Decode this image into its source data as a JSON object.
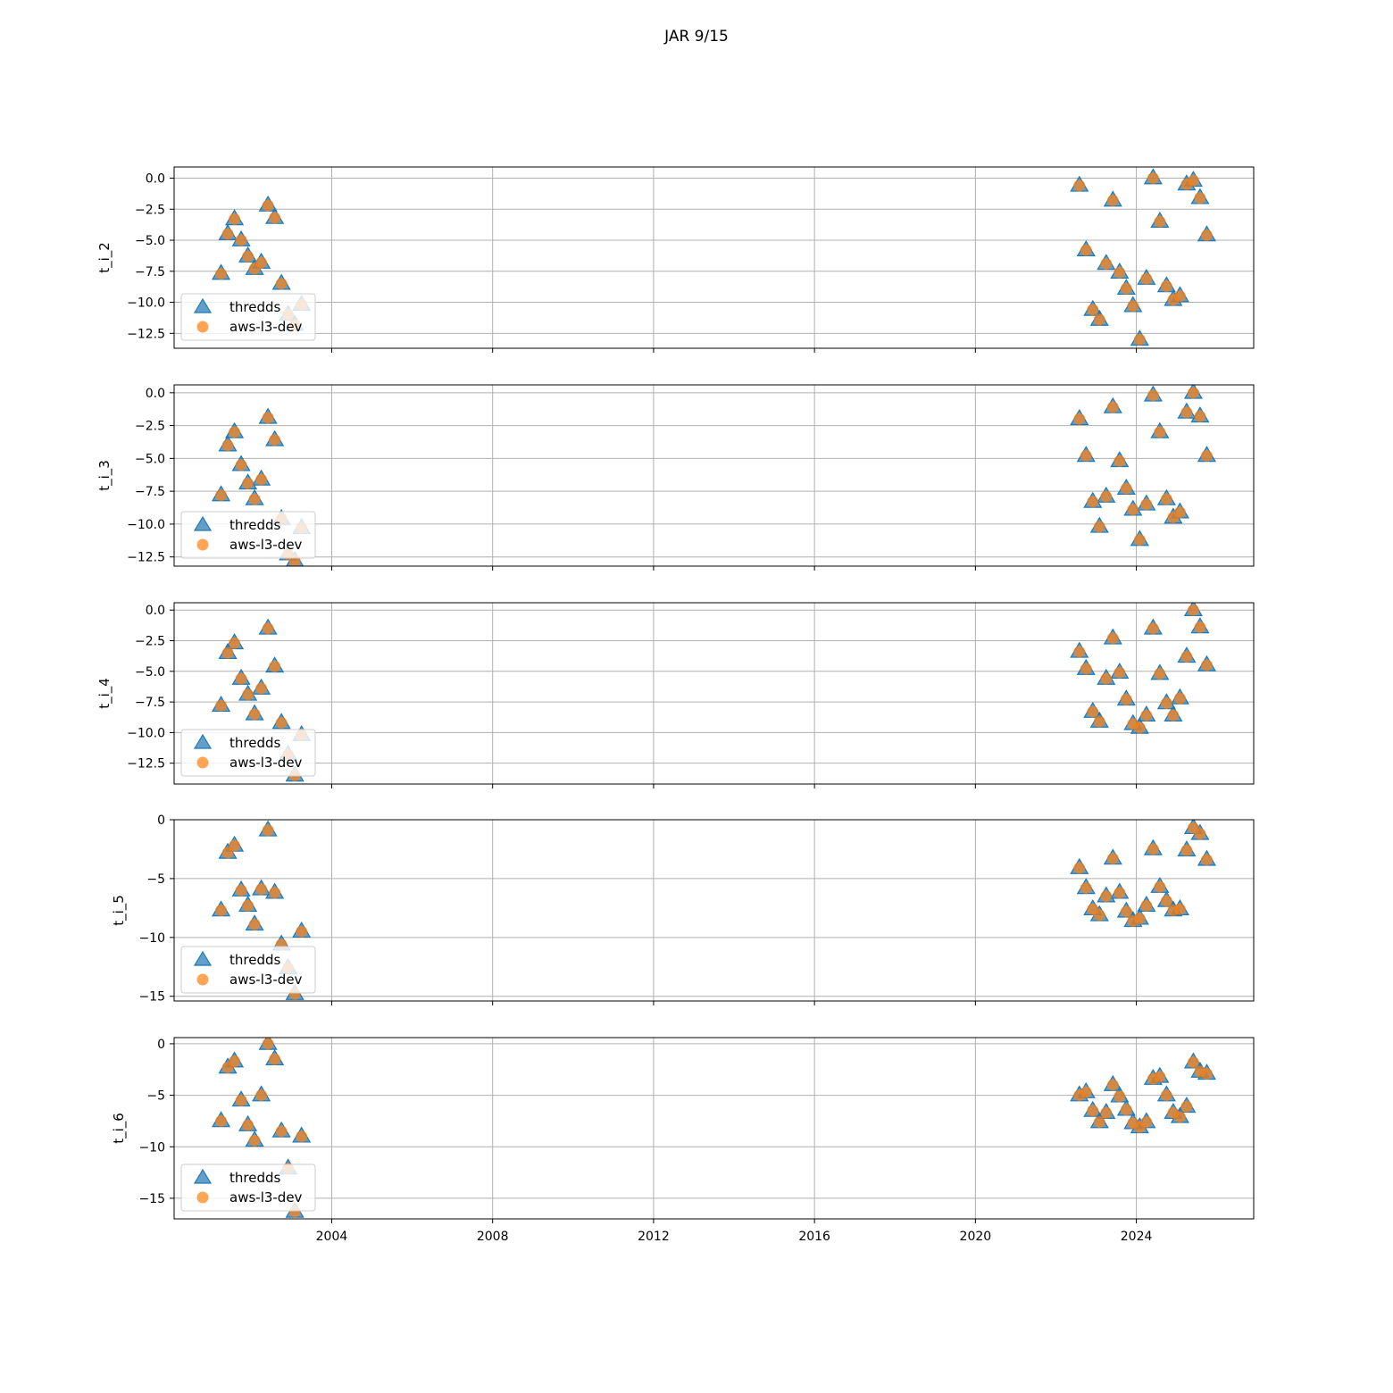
{
  "title": "JAR 9/15",
  "chart_data": {
    "type": "scatter",
    "title": "JAR 9/15",
    "x_axis": {
      "kind": "date",
      "range": [
        "2000-02-01",
        "2026-12-01"
      ],
      "ticks": [
        "2004-01-01",
        "2008-01-01",
        "2012-01-01",
        "2016-01-01",
        "2020-01-01",
        "2024-01-01"
      ],
      "tick_labels": [
        "2004",
        "2008",
        "2012",
        "2016",
        "2020",
        "2024"
      ]
    },
    "grid": true,
    "legend_placement": "lower-left",
    "colors": {
      "thredds": "#1f77b4",
      "aws-l3-dev": "#ff7f0e"
    },
    "series_names": [
      "thredds",
      "aws-l3-dev"
    ],
    "panels": [
      {
        "ylabel": "t_i_2",
        "ylim": [
          -13.7,
          0.9
        ],
        "yticks": [
          0,
          -2.5,
          -5,
          -7.5,
          -10,
          -12.5
        ],
        "ytick_labels": [
          "0.0",
          "−2.5",
          "−5.0",
          "−7.5",
          "−10.0",
          "−12.5"
        ],
        "x": [
          "2001-04",
          "2001-06",
          "2001-08",
          "2001-10",
          "2001-12",
          "2002-02",
          "2002-04",
          "2002-06",
          "2002-08",
          "2002-10",
          "2002-12",
          "2003-02",
          "2003-04",
          "2022-08",
          "2022-10",
          "2022-12",
          "2023-02",
          "2023-04",
          "2023-06",
          "2023-08",
          "2023-10",
          "2023-12",
          "2024-02",
          "2024-04",
          "2024-06",
          "2024-08",
          "2024-10",
          "2024-12",
          "2025-02",
          "2025-04",
          "2025-06",
          "2025-08",
          "2025-10"
        ],
        "y": [
          -7.7,
          -4.5,
          -3.3,
          -5.0,
          -6.3,
          -7.3,
          -6.8,
          -2.2,
          -3.2,
          -8.5,
          -11.0,
          -11.8,
          -10.2,
          -0.6,
          -5.8,
          -10.6,
          -11.4,
          -6.9,
          -1.8,
          -7.6,
          -8.9,
          -10.3,
          -13.0,
          -8.1,
          0.0,
          -3.5,
          -8.7,
          -9.8,
          -9.5,
          -0.5,
          -0.2,
          -1.6,
          -4.6
        ]
      },
      {
        "ylabel": "t_i_3",
        "ylim": [
          -13.2,
          0.6
        ],
        "yticks": [
          0,
          -2.5,
          -5,
          -7.5,
          -10,
          -12.5
        ],
        "ytick_labels": [
          "0.0",
          "−2.5",
          "−5.0",
          "−7.5",
          "−10.0",
          "−12.5"
        ],
        "x": [
          "2001-04",
          "2001-06",
          "2001-08",
          "2001-10",
          "2001-12",
          "2002-02",
          "2002-04",
          "2002-06",
          "2002-08",
          "2002-10",
          "2002-12",
          "2003-02",
          "2003-04",
          "2022-08",
          "2022-10",
          "2022-12",
          "2023-02",
          "2023-04",
          "2023-06",
          "2023-08",
          "2023-10",
          "2023-12",
          "2024-02",
          "2024-04",
          "2024-06",
          "2024-08",
          "2024-10",
          "2024-12",
          "2025-02",
          "2025-04",
          "2025-06",
          "2025-08",
          "2025-10"
        ],
        "y": [
          -7.8,
          -4.0,
          -3.0,
          -5.5,
          -6.9,
          -8.1,
          -6.6,
          -1.9,
          -3.6,
          -9.6,
          -12.3,
          -12.8,
          -10.3,
          -2.0,
          -4.8,
          -8.3,
          -10.2,
          -7.9,
          -1.1,
          -5.2,
          -7.3,
          -8.9,
          -11.2,
          -8.5,
          -0.2,
          -3.0,
          -8.1,
          -9.5,
          -9.1,
          -1.5,
          0.0,
          -1.8,
          -4.8
        ]
      },
      {
        "ylabel": "t_i_4",
        "ylim": [
          -14.2,
          0.6
        ],
        "yticks": [
          0,
          -2.5,
          -5,
          -7.5,
          -10,
          -12.5
        ],
        "ytick_labels": [
          "0.0",
          "−2.5",
          "−5.0",
          "−7.5",
          "−10.0",
          "−12.5"
        ],
        "x": [
          "2001-04",
          "2001-06",
          "2001-08",
          "2001-10",
          "2001-12",
          "2002-02",
          "2002-04",
          "2002-06",
          "2002-08",
          "2002-10",
          "2002-12",
          "2003-02",
          "2003-04",
          "2022-08",
          "2022-10",
          "2022-12",
          "2023-02",
          "2023-04",
          "2023-06",
          "2023-08",
          "2023-10",
          "2023-12",
          "2024-02",
          "2024-04",
          "2024-06",
          "2024-08",
          "2024-10",
          "2024-12",
          "2025-02",
          "2025-04",
          "2025-06",
          "2025-08",
          "2025-10"
        ],
        "y": [
          -7.8,
          -3.5,
          -2.7,
          -5.6,
          -6.9,
          -8.5,
          -6.4,
          -1.5,
          -4.6,
          -9.2,
          -11.8,
          -13.5,
          -10.2,
          -3.4,
          -4.8,
          -8.3,
          -9.1,
          -5.6,
          -2.3,
          -5.1,
          -7.3,
          -9.3,
          -9.6,
          -8.6,
          -1.5,
          -5.2,
          -7.6,
          -8.6,
          -7.2,
          -3.8,
          0.0,
          -1.4,
          -4.5
        ]
      },
      {
        "ylabel": "t_i_5",
        "ylim": [
          -15.4,
          0.0
        ],
        "yticks": [
          0,
          -5,
          -10,
          -15
        ],
        "ytick_labels": [
          "0",
          "−5",
          "−10",
          "−15"
        ],
        "x": [
          "2001-04",
          "2001-06",
          "2001-08",
          "2001-10",
          "2001-12",
          "2002-02",
          "2002-04",
          "2002-06",
          "2002-08",
          "2002-10",
          "2002-12",
          "2003-02",
          "2003-04",
          "2022-08",
          "2022-10",
          "2022-12",
          "2023-02",
          "2023-04",
          "2023-06",
          "2023-08",
          "2023-10",
          "2023-12",
          "2024-02",
          "2024-04",
          "2024-06",
          "2024-08",
          "2024-10",
          "2024-12",
          "2025-02",
          "2025-04",
          "2025-06",
          "2025-08",
          "2025-10"
        ],
        "y": [
          -7.7,
          -2.8,
          -2.2,
          -6.0,
          -7.3,
          -8.9,
          -5.9,
          -0.9,
          -6.2,
          -10.6,
          -12.6,
          -14.8,
          -9.5,
          -4.1,
          -5.8,
          -7.6,
          -8.1,
          -6.5,
          -3.3,
          -6.2,
          -7.8,
          -8.6,
          -8.4,
          -7.3,
          -2.5,
          -5.7,
          -6.9,
          -7.7,
          -7.6,
          -2.6,
          -0.7,
          -1.2,
          -3.4
        ]
      },
      {
        "ylabel": "t_i_6",
        "ylim": [
          -17.0,
          0.6
        ],
        "yticks": [
          0,
          -5,
          -10,
          -15
        ],
        "ytick_labels": [
          "0",
          "−5",
          "−10",
          "−15"
        ],
        "x": [
          "2001-04",
          "2001-06",
          "2001-08",
          "2001-10",
          "2001-12",
          "2002-02",
          "2002-04",
          "2002-06",
          "2002-08",
          "2002-10",
          "2002-12",
          "2003-02",
          "2003-04",
          "2022-08",
          "2022-10",
          "2022-12",
          "2023-02",
          "2023-04",
          "2023-06",
          "2023-08",
          "2023-10",
          "2023-12",
          "2024-02",
          "2024-04",
          "2024-06",
          "2024-08",
          "2024-10",
          "2024-12",
          "2025-02",
          "2025-04",
          "2025-06",
          "2025-08",
          "2025-10"
        ],
        "y": [
          -7.5,
          -2.3,
          -1.7,
          -5.5,
          -7.9,
          -9.4,
          -5.0,
          0.0,
          -1.5,
          -8.5,
          -12.1,
          -16.3,
          -9.0,
          -5.0,
          -4.7,
          -6.5,
          -7.6,
          -6.7,
          -4.0,
          -5.1,
          -6.4,
          -7.7,
          -8.1,
          -7.6,
          -3.4,
          -3.2,
          -5.0,
          -6.7,
          -7.1,
          -6.1,
          -1.8,
          -2.7,
          -2.9
        ]
      }
    ]
  }
}
